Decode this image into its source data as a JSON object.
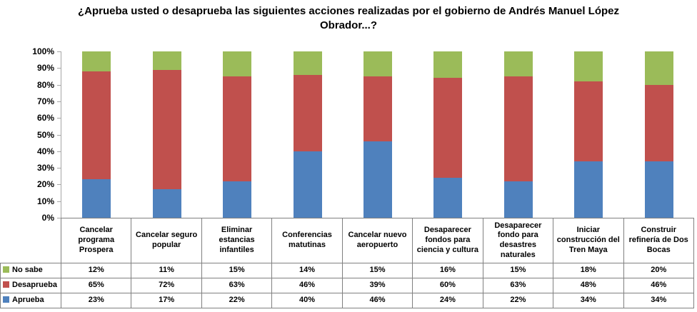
{
  "chart_data": {
    "type": "bar",
    "stacked": true,
    "percent_stacked": true,
    "title": "¿Aprueba usted o desaprueba las siguientes acciones realizadas por el gobierno de Andrés Manuel López Obrador...?",
    "categories": [
      "Cancelar programa Prospera",
      "Cancelar seguro popular",
      "Eliminar estancias infantiles",
      "Conferencias matutinas",
      "Cancelar nuevo aeropuerto",
      "Desaparecer fondos para ciencia y cultura",
      "Desaparecer fondo para desastres naturales",
      "Iniciar construcción del Tren Maya",
      "Construir refinería de Dos Bocas"
    ],
    "series": [
      {
        "name": "Aprueba",
        "color": "#4f81bd",
        "values": [
          23,
          17,
          22,
          40,
          46,
          24,
          22,
          34,
          34
        ]
      },
      {
        "name": "Desaprueba",
        "color": "#c0504d",
        "values": [
          65,
          72,
          63,
          46,
          39,
          60,
          63,
          48,
          46
        ]
      },
      {
        "name": "No sabe",
        "color": "#9bbb59",
        "values": [
          12,
          11,
          15,
          14,
          15,
          16,
          15,
          18,
          20
        ]
      }
    ],
    "table_row_order": [
      "No sabe",
      "Desaprueba",
      "Aprueba"
    ],
    "value_suffix": "%",
    "xlabel": "",
    "ylabel": "",
    "ylim": [
      0,
      100
    ],
    "y_tick_labels": [
      "0%",
      "10%",
      "20%",
      "30%",
      "40%",
      "50%",
      "60%",
      "70%",
      "80%",
      "90%",
      "100%"
    ],
    "grid": false,
    "legend_position": "table-left",
    "axis_color": "#a6a6a6",
    "table_border_color": "#808080",
    "text_color": "#000000"
  }
}
